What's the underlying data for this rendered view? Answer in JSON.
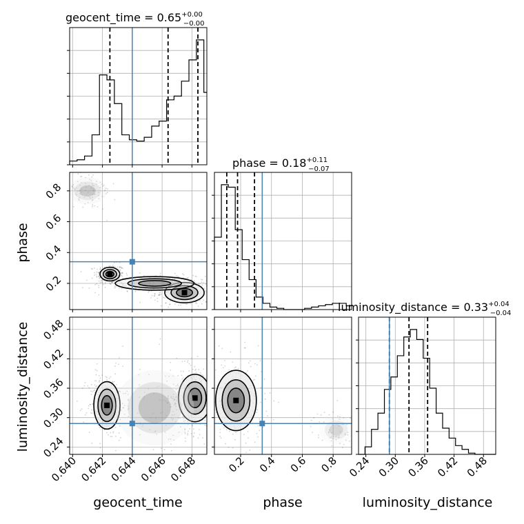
{
  "chart_data": {
    "type": "corner",
    "parameters": [
      "geocent_time",
      "phase",
      "luminosity_distance"
    ],
    "titles": [
      {
        "param": "geocent_time",
        "text": "geocent_time = 0.65",
        "sup": "+0.00",
        "sub": "−0.00"
      },
      {
        "param": "phase",
        "text": "phase = 0.18",
        "sup": "+0.11",
        "sub": "−0.07"
      },
      {
        "param": "luminosity_distance",
        "text": "luminosity_distance = 0.33",
        "sup": "+0.04",
        "sub": "−0.04"
      }
    ],
    "axis_labels": {
      "x": [
        "geocent_time",
        "phase",
        "luminosity_distance"
      ],
      "y": [
        "phase",
        "luminosity_distance"
      ]
    },
    "ranges": {
      "geocent_time": [
        0.6398,
        0.649
      ],
      "phase": [
        0.03,
        0.92
      ],
      "luminosity_distance": [
        0.225,
        0.505
      ]
    },
    "ticks": {
      "geocent_time": {
        "values": [
          0.64,
          0.642,
          0.644,
          0.646,
          0.648
        ],
        "labels": [
          "0.640",
          "0.642",
          "0.644",
          "0.646",
          "0.648"
        ]
      },
      "phase": {
        "values": [
          0.2,
          0.4,
          0.6,
          0.8
        ],
        "labels": [
          "0.2",
          "0.4",
          "0.6",
          "0.8"
        ]
      },
      "luminosity_distance": {
        "values": [
          0.24,
          0.3,
          0.36,
          0.42,
          0.48
        ],
        "labels": [
          "0.24",
          "0.30",
          "0.36",
          "0.42",
          "0.48"
        ]
      }
    },
    "truths": {
      "geocent_time": 0.644,
      "phase": 0.34,
      "luminosity_distance": 0.288
    },
    "quantiles": {
      "geocent_time": [
        0.6425,
        0.6464,
        0.6484
      ],
      "phase": [
        0.11,
        0.18,
        0.29
      ],
      "luminosity_distance": [
        0.288,
        0.328,
        0.366
      ]
    },
    "histograms": {
      "geocent_time": {
        "edges": [
          0.6398,
          0.6403,
          0.6408,
          0.6413,
          0.6418,
          0.6423,
          0.6428,
          0.6433,
          0.6438,
          0.6443,
          0.6448,
          0.6453,
          0.6458,
          0.6463,
          0.6468,
          0.6473,
          0.6478,
          0.6483,
          0.6488,
          0.649
        ],
        "counts": [
          0.03,
          0.04,
          0.07,
          0.24,
          0.72,
          0.68,
          0.49,
          0.24,
          0.2,
          0.19,
          0.22,
          0.31,
          0.35,
          0.52,
          0.55,
          0.67,
          0.84,
          1.0,
          0.58
        ]
      },
      "phase": {
        "edges": [
          0.03,
          0.075,
          0.12,
          0.165,
          0.21,
          0.255,
          0.3,
          0.345,
          0.39,
          0.435,
          0.48,
          0.525,
          0.57,
          0.615,
          0.66,
          0.705,
          0.75,
          0.795,
          0.84,
          0.885,
          0.92
        ],
        "counts": [
          0.58,
          1.0,
          0.98,
          0.64,
          0.4,
          0.24,
          0.1,
          0.05,
          0.02,
          0.01,
          0.0,
          0.0,
          0.0,
          0.01,
          0.02,
          0.03,
          0.04,
          0.05,
          0.05,
          0.03
        ]
      },
      "luminosity_distance": {
        "edges": [
          0.225,
          0.2382,
          0.2514,
          0.2646,
          0.2778,
          0.291,
          0.3042,
          0.3174,
          0.3306,
          0.3438,
          0.357,
          0.3702,
          0.3834,
          0.3966,
          0.4098,
          0.423,
          0.4362,
          0.4494,
          0.4626,
          0.4758,
          0.489,
          0.505
        ],
        "counts": [
          0.0,
          0.06,
          0.2,
          0.33,
          0.52,
          0.62,
          0.79,
          0.94,
          1.0,
          0.92,
          0.77,
          0.53,
          0.33,
          0.21,
          0.13,
          0.07,
          0.04,
          0.01,
          0.0,
          0.0,
          0.0
        ]
      }
    },
    "density_clusters": [
      {
        "x": "geocent_time",
        "y": "phase",
        "cx": 0.6425,
        "cy": 0.26,
        "sx": 0.0003,
        "sy": 0.02,
        "weight": 1.0
      },
      {
        "x": "geocent_time",
        "y": "phase",
        "cx": 0.6475,
        "cy": 0.14,
        "sx": 0.0006,
        "sy": 0.03,
        "weight": 1.0
      },
      {
        "x": "geocent_time",
        "y": "phase",
        "cx": 0.6455,
        "cy": 0.2,
        "sx": 0.0012,
        "sy": 0.02,
        "weight": 0.6
      },
      {
        "x": "geocent_time",
        "y": "phase",
        "cx": 0.641,
        "cy": 0.8,
        "sx": 0.0006,
        "sy": 0.04,
        "weight": 0.35
      },
      {
        "x": "geocent_time",
        "y": "luminosity_distance",
        "cx": 0.6423,
        "cy": 0.325,
        "sx": 0.0004,
        "sy": 0.022,
        "weight": 1.0
      },
      {
        "x": "geocent_time",
        "y": "luminosity_distance",
        "cx": 0.6482,
        "cy": 0.34,
        "sx": 0.0005,
        "sy": 0.022,
        "weight": 1.3
      },
      {
        "x": "geocent_time",
        "y": "luminosity_distance",
        "cx": 0.6455,
        "cy": 0.32,
        "sx": 0.0012,
        "sy": 0.035,
        "weight": 0.4
      },
      {
        "x": "phase",
        "y": "luminosity_distance",
        "cx": 0.17,
        "cy": 0.335,
        "sx": 0.06,
        "sy": 0.028,
        "weight": 1.0
      },
      {
        "x": "phase",
        "y": "luminosity_distance",
        "cx": 0.82,
        "cy": 0.275,
        "sx": 0.05,
        "sy": 0.013,
        "weight": 0.25
      }
    ],
    "grid": true,
    "colors": {
      "truth": "#4682b4",
      "line": "#000000",
      "grid": "#b0b0b0",
      "points": "#000000"
    }
  }
}
